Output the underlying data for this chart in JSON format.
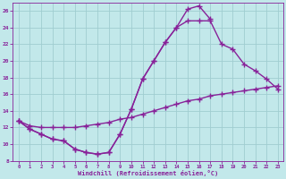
{
  "xlabel": "Windchill (Refroidissement éolien,°C)",
  "bg_color": "#c2e8ea",
  "line_color": "#882299",
  "grid_color": "#a0cdd0",
  "xlim": [
    -0.5,
    23.5
  ],
  "ylim": [
    8,
    27
  ],
  "xticks": [
    0,
    1,
    2,
    3,
    4,
    5,
    6,
    7,
    8,
    9,
    10,
    11,
    12,
    13,
    14,
    15,
    16,
    17,
    18,
    19,
    20,
    21,
    22,
    23
  ],
  "yticks": [
    8,
    10,
    12,
    14,
    16,
    18,
    20,
    22,
    24,
    26
  ],
  "curve1_x": [
    0,
    1,
    2,
    3,
    4,
    5,
    6,
    7,
    8,
    9,
    10,
    11,
    12,
    13,
    14,
    15,
    16,
    17
  ],
  "curve1_y": [
    12.8,
    11.8,
    11.2,
    10.6,
    10.4,
    9.4,
    9.0,
    8.8,
    9.0,
    11.2,
    14.2,
    17.8,
    20.0,
    22.2,
    24.0,
    26.2,
    26.6,
    25.0
  ],
  "curve2_x": [
    0,
    1,
    2,
    3,
    4,
    5,
    6,
    7,
    8,
    9,
    10,
    11,
    12,
    13,
    14,
    15,
    16,
    17,
    18,
    19,
    20,
    21,
    22,
    23
  ],
  "curve2_y": [
    12.8,
    12.2,
    12.0,
    12.0,
    12.0,
    12.0,
    12.2,
    12.4,
    12.6,
    13.0,
    13.2,
    13.6,
    14.0,
    14.4,
    14.8,
    15.2,
    15.4,
    15.8,
    16.0,
    16.2,
    16.4,
    16.6,
    16.8,
    17.0
  ],
  "curve3_x": [
    0,
    1,
    2,
    3,
    4,
    5,
    6,
    7,
    8,
    9,
    10,
    11,
    12,
    13,
    14,
    15,
    16,
    17,
    18,
    19,
    20,
    21,
    22,
    23
  ],
  "curve3_y": [
    12.8,
    11.8,
    11.2,
    10.6,
    10.4,
    9.4,
    9.0,
    8.8,
    9.0,
    11.2,
    14.2,
    17.8,
    20.0,
    22.2,
    24.0,
    24.8,
    24.8,
    24.8,
    22.0,
    21.4,
    19.6,
    18.8,
    17.8,
    16.6
  ],
  "marker": "+",
  "markersize": 4,
  "linewidth": 1.0
}
